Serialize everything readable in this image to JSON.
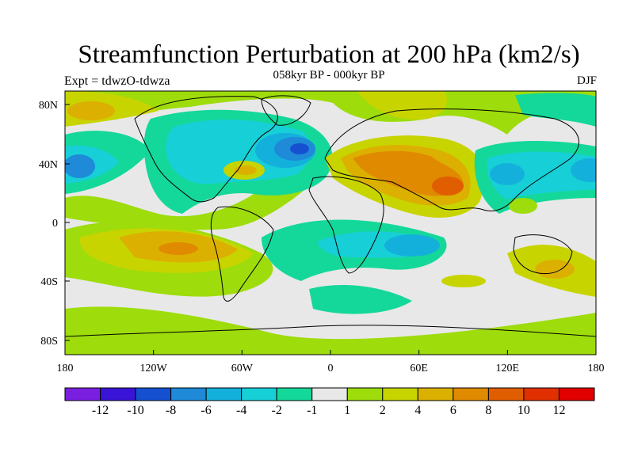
{
  "title": "Streamfunction Perturbation at 200 hPa (km2/s)",
  "subtitle": "058kyr BP - 000kyr BP",
  "left_label": "Expt = tdwzO-tdwza",
  "right_label": "DJF",
  "lat_labels": [
    "80N",
    "40N",
    "0",
    "40S",
    "80S"
  ],
  "lon_labels": [
    "180",
    "120W",
    "60W",
    "0",
    "60E",
    "120E",
    "180"
  ],
  "colorbar": {
    "tick_labels": [
      "-12",
      "-10",
      "-8",
      "-6",
      "-4",
      "-2",
      "-1",
      "1",
      "2",
      "4",
      "6",
      "8",
      "10",
      "12"
    ],
    "colors": [
      "#7a1fe0",
      "#3a14d6",
      "#1550d0",
      "#1e8ad8",
      "#14b0dc",
      "#17cfd6",
      "#14d899",
      "#e8e8e8",
      "#9edc0c",
      "#c8d400",
      "#dcb000",
      "#e08a00",
      "#e05e00",
      "#e03000",
      "#e00000"
    ]
  }
}
